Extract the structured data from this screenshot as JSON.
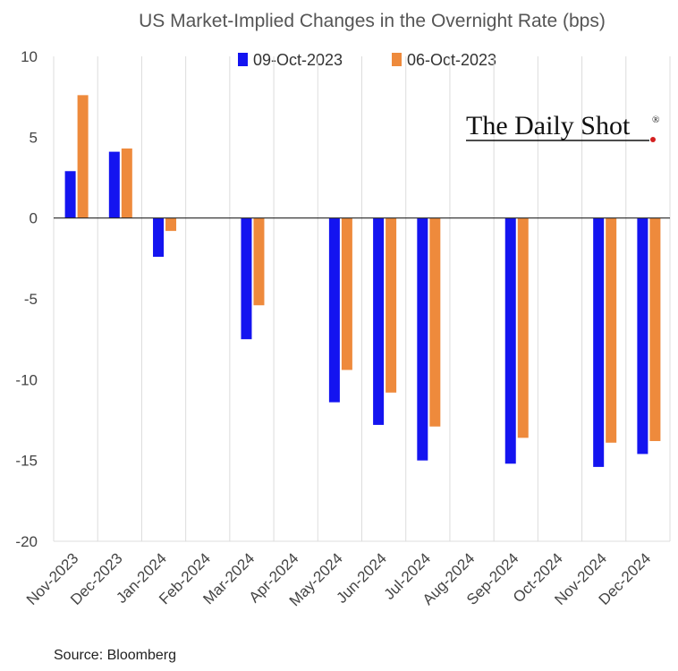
{
  "chart_data": {
    "type": "bar",
    "title": "US Market-Implied Changes in the Overnight Rate (bps)",
    "categories": [
      "Nov-2023",
      "Dec-2023",
      "Jan-2024",
      "Feb-2024",
      "Mar-2024",
      "Apr-2024",
      "May-2024",
      "Jun-2024",
      "Jul-2024",
      "Aug-2024",
      "Sep-2024",
      "Oct-2024",
      "Nov-2024",
      "Dec-2024"
    ],
    "series": [
      {
        "name": "09-Oct-2023",
        "color": "#1414f0",
        "values": [
          2.9,
          4.1,
          -2.4,
          null,
          -7.5,
          null,
          -11.4,
          -12.8,
          -15.0,
          null,
          -15.2,
          null,
          -15.4,
          -14.6
        ]
      },
      {
        "name": "06-Oct-2023",
        "color": "#ee8a3c",
        "values": [
          7.6,
          4.3,
          -0.8,
          null,
          -5.4,
          null,
          -9.4,
          -10.8,
          -12.9,
          null,
          -13.6,
          null,
          -13.9,
          -13.8
        ]
      }
    ],
    "ylim": [
      -20,
      10
    ],
    "yticks": [
      10,
      5,
      0,
      -5,
      -10,
      -15,
      -20
    ],
    "xlabel": "",
    "ylabel": "",
    "legend_position": "top"
  },
  "branding": {
    "name": "The Daily Shot",
    "mark": "®"
  },
  "source": "Source: Bloomberg"
}
